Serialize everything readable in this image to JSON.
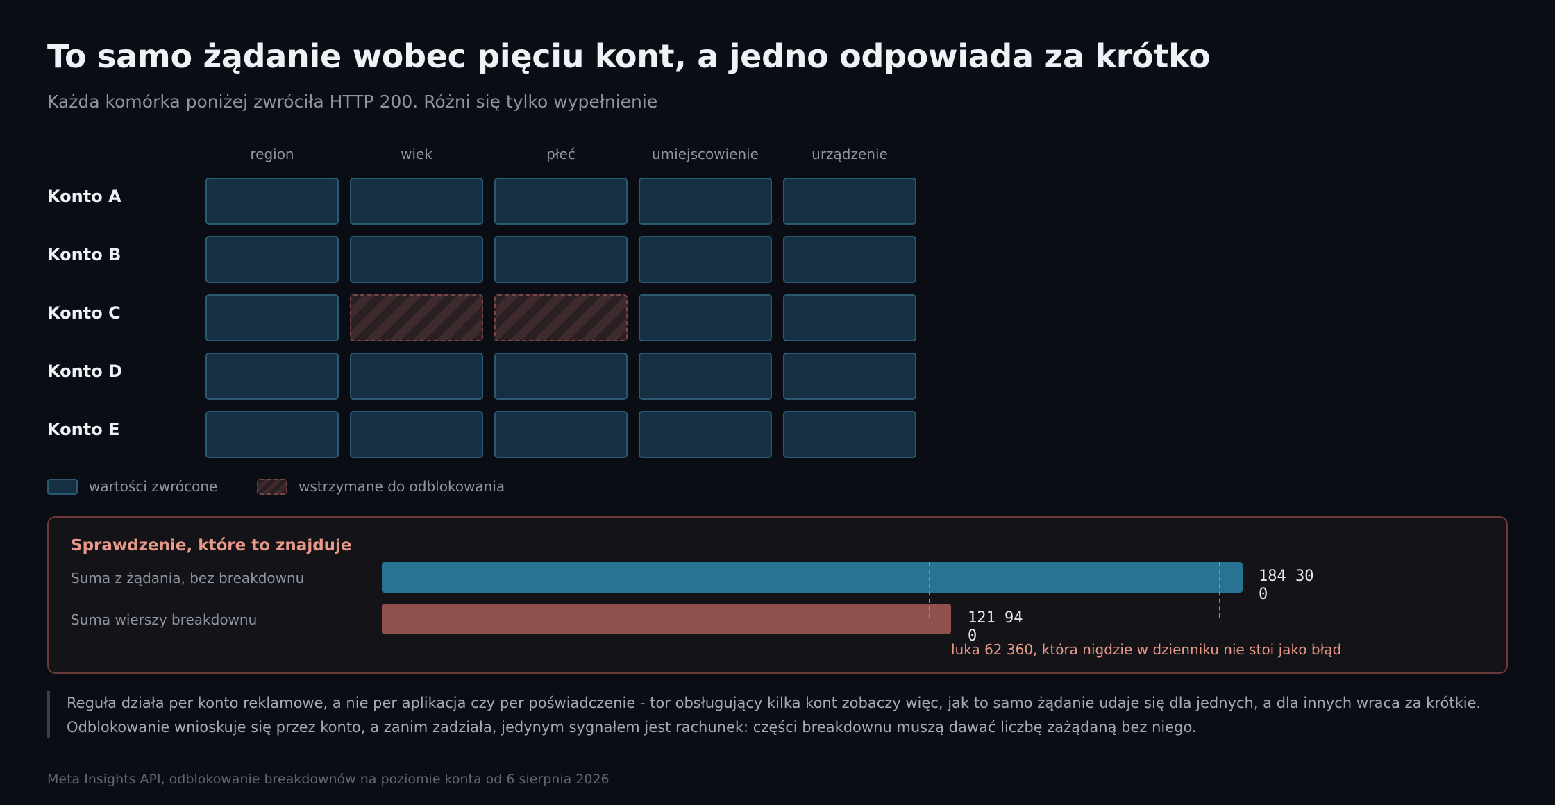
{
  "title": "To samo żądanie wobec pięciu kont, a jedno odpowiada za krótko",
  "subtitle": "Każda komórka poniżej zwróciła HTTP 200. Różni się tylko wypełnienie",
  "columns": [
    "region",
    "wiek",
    "płeć",
    "umiejscowienie",
    "urządzenie"
  ],
  "rows": [
    {
      "label": "Konto A",
      "cells": [
        "returned",
        "returned",
        "returned",
        "returned",
        "returned"
      ]
    },
    {
      "label": "Konto B",
      "cells": [
        "returned",
        "returned",
        "returned",
        "returned",
        "returned"
      ]
    },
    {
      "label": "Konto C",
      "cells": [
        "returned",
        "held",
        "held",
        "returned",
        "returned"
      ]
    },
    {
      "label": "Konto D",
      "cells": [
        "returned",
        "returned",
        "returned",
        "returned",
        "returned"
      ]
    },
    {
      "label": "Konto E",
      "cells": [
        "returned",
        "returned",
        "returned",
        "returned",
        "returned"
      ]
    }
  ],
  "legend": {
    "returned": "wartości zwrócone",
    "held": "wstrzymane do odblokowania"
  },
  "check": {
    "title": "Sprawdzenie, które to znajduje",
    "total_label": "Suma z żądania, bez breakdownu",
    "total_value": "184 300",
    "rows_label": "Suma wierszy breakdownu",
    "rows_value": "121 940",
    "gap_text": "luka 62 360, która nigdzie w dzienniku nie stoi jako błąd"
  },
  "note": {
    "line1": "Reguła działa per konto reklamowe, a nie per aplikacja czy per poświadczenie - tor obsługujący kilka kont zobaczy więc, jak to samo żądanie udaje się dla jednych, a dla innych wraca za krótkie.",
    "line2": "Odblokowanie wnioskuje się przez konto, a zanim zadziała, jedynym sygnałem jest rachunek: części breakdownu muszą dawać liczbę zażądaną bez niego."
  },
  "footer": "Meta Insights API, odblokowanie breakdownów na poziomie konta od 6 sierpnia 2026",
  "colors": {
    "returned": "#153043",
    "held": "#3f2b2e",
    "total_bar": "#287394",
    "rows_bar": "#8e514d",
    "accent": "#e9998a"
  }
}
